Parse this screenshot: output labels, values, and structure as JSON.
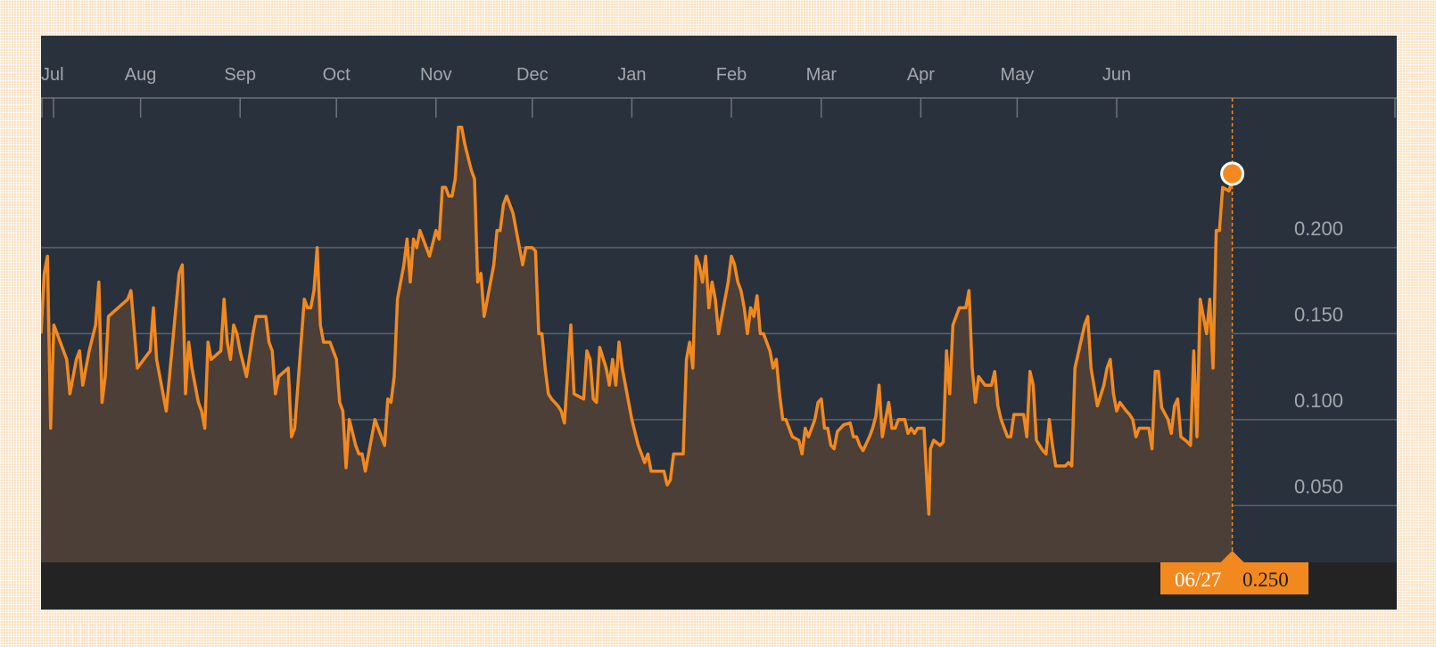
{
  "colors": {
    "page_background": "#fbe3c4",
    "plot_background": "#29313d",
    "line": "#f2891f",
    "area": "#4b3f38",
    "bottom_bar": "#232323",
    "text": "#a3a7ad"
  },
  "chart_data": {
    "type": "area",
    "title": "",
    "xlabel": "",
    "ylabel": "",
    "x_axis_months": [
      "Jul",
      "Aug",
      "Sep",
      "Oct",
      "Nov",
      "Dec",
      "Jan",
      "Feb",
      "Mar",
      "Apr",
      "May",
      "Jun"
    ],
    "y_ticks": [
      "0.050",
      "0.100",
      "0.150",
      "0.200"
    ],
    "ylim": [
      0.017,
      0.287
    ],
    "xlim_days": [
      0,
      365
    ],
    "grid": "horizontal",
    "x_unit": "day index from start of Jul",
    "series": [
      {
        "points": [
          [
            0,
            0.15
          ],
          [
            1,
            0.185
          ],
          [
            2,
            0.195
          ],
          [
            3,
            0.095
          ],
          [
            4,
            0.155
          ],
          [
            6,
            0.145
          ],
          [
            8,
            0.135
          ],
          [
            9,
            0.115
          ],
          [
            11,
            0.135
          ],
          [
            12,
            0.14
          ],
          [
            13,
            0.12
          ],
          [
            15,
            0.14
          ],
          [
            17,
            0.155
          ],
          [
            18,
            0.18
          ],
          [
            19,
            0.11
          ],
          [
            20,
            0.125
          ],
          [
            21,
            0.16
          ],
          [
            24,
            0.165
          ],
          [
            27,
            0.17
          ],
          [
            28,
            0.175
          ],
          [
            30,
            0.13
          ],
          [
            32,
            0.135
          ],
          [
            34,
            0.14
          ],
          [
            35,
            0.165
          ],
          [
            36,
            0.135
          ],
          [
            37,
            0.125
          ],
          [
            39,
            0.105
          ],
          [
            41,
            0.145
          ],
          [
            42,
            0.165
          ],
          [
            43,
            0.185
          ],
          [
            44,
            0.19
          ],
          [
            45,
            0.115
          ],
          [
            46,
            0.145
          ],
          [
            47,
            0.13
          ],
          [
            49,
            0.11
          ],
          [
            50,
            0.105
          ],
          [
            51,
            0.095
          ],
          [
            52,
            0.145
          ],
          [
            53,
            0.135
          ],
          [
            56,
            0.14
          ],
          [
            57,
            0.17
          ],
          [
            58,
            0.145
          ],
          [
            59,
            0.135
          ],
          [
            60,
            0.155
          ],
          [
            61,
            0.15
          ],
          [
            62,
            0.14
          ],
          [
            64,
            0.125
          ],
          [
            66,
            0.15
          ],
          [
            67,
            0.16
          ],
          [
            70,
            0.16
          ],
          [
            71,
            0.145
          ],
          [
            72,
            0.14
          ],
          [
            73,
            0.115
          ],
          [
            74,
            0.125
          ],
          [
            77,
            0.13
          ],
          [
            78,
            0.09
          ],
          [
            79,
            0.095
          ],
          [
            81,
            0.145
          ],
          [
            82,
            0.17
          ],
          [
            83,
            0.165
          ],
          [
            84,
            0.165
          ],
          [
            85,
            0.175
          ],
          [
            86,
            0.2
          ],
          [
            87,
            0.155
          ],
          [
            88,
            0.145
          ],
          [
            90,
            0.145
          ],
          [
            92,
            0.135
          ],
          [
            93,
            0.11
          ],
          [
            94,
            0.105
          ],
          [
            95,
            0.072
          ],
          [
            96,
            0.1
          ],
          [
            98,
            0.085
          ],
          [
            99,
            0.08
          ],
          [
            100,
            0.08
          ],
          [
            101,
            0.07
          ],
          [
            102,
            0.08
          ],
          [
            104,
            0.1
          ],
          [
            106,
            0.09
          ],
          [
            107,
            0.085
          ],
          [
            108,
            0.112
          ],
          [
            109,
            0.11
          ],
          [
            110,
            0.125
          ],
          [
            111,
            0.17
          ],
          [
            113,
            0.19
          ],
          [
            114,
            0.205
          ],
          [
            115,
            0.18
          ],
          [
            116,
            0.205
          ],
          [
            117,
            0.2
          ],
          [
            118,
            0.21
          ],
          [
            120,
            0.2
          ],
          [
            121,
            0.195
          ],
          [
            123,
            0.21
          ],
          [
            124,
            0.205
          ],
          [
            125,
            0.235
          ],
          [
            126,
            0.235
          ],
          [
            127,
            0.23
          ],
          [
            128,
            0.23
          ],
          [
            129,
            0.24
          ],
          [
            130,
            0.27
          ],
          [
            131,
            0.27
          ],
          [
            132,
            0.26
          ],
          [
            134,
            0.245
          ],
          [
            135,
            0.24
          ],
          [
            136,
            0.18
          ],
          [
            137,
            0.185
          ],
          [
            138,
            0.16
          ],
          [
            139,
            0.17
          ],
          [
            140,
            0.18
          ],
          [
            141,
            0.19
          ],
          [
            142,
            0.21
          ],
          [
            143,
            0.21
          ],
          [
            144,
            0.225
          ],
          [
            145,
            0.23
          ],
          [
            146,
            0.225
          ],
          [
            147,
            0.22
          ],
          [
            148,
            0.21
          ],
          [
            149,
            0.2
          ],
          [
            150,
            0.19
          ],
          [
            151,
            0.2
          ],
          [
            152,
            0.2
          ],
          [
            153,
            0.2
          ],
          [
            154,
            0.198
          ],
          [
            155,
            0.15
          ],
          [
            156,
            0.15
          ],
          [
            157,
            0.13
          ],
          [
            158,
            0.115
          ],
          [
            159,
            0.112
          ],
          [
            161,
            0.108
          ],
          [
            162,
            0.105
          ],
          [
            163,
            0.098
          ],
          [
            165,
            0.155
          ],
          [
            166,
            0.115
          ],
          [
            168,
            0.113
          ],
          [
            169,
            0.112
          ],
          [
            170,
            0.14
          ],
          [
            171,
            0.135
          ],
          [
            172,
            0.112
          ],
          [
            173,
            0.11
          ],
          [
            174,
            0.142
          ],
          [
            176,
            0.13
          ],
          [
            177,
            0.12
          ],
          [
            178,
            0.135
          ],
          [
            179,
            0.12
          ],
          [
            180,
            0.145
          ],
          [
            181,
            0.13
          ],
          [
            183,
            0.11
          ],
          [
            184,
            0.1
          ],
          [
            186,
            0.085
          ],
          [
            187,
            0.08
          ],
          [
            188,
            0.075
          ],
          [
            189,
            0.08
          ],
          [
            190,
            0.07
          ],
          [
            191,
            0.07
          ],
          [
            192,
            0.07
          ],
          [
            193,
            0.07
          ],
          [
            194,
            0.07
          ],
          [
            195,
            0.062
          ],
          [
            196,
            0.065
          ],
          [
            197,
            0.08
          ],
          [
            199,
            0.08
          ],
          [
            200,
            0.08
          ],
          [
            201,
            0.135
          ],
          [
            202,
            0.145
          ],
          [
            203,
            0.13
          ],
          [
            204,
            0.195
          ],
          [
            205,
            0.19
          ],
          [
            206,
            0.18
          ],
          [
            207,
            0.195
          ],
          [
            208,
            0.165
          ],
          [
            209,
            0.18
          ],
          [
            210,
            0.17
          ],
          [
            211,
            0.15
          ],
          [
            212,
            0.16
          ],
          [
            213,
            0.17
          ],
          [
            214,
            0.18
          ],
          [
            215,
            0.195
          ],
          [
            216,
            0.19
          ],
          [
            217,
            0.18
          ],
          [
            218,
            0.175
          ],
          [
            219,
            0.165
          ],
          [
            220,
            0.15
          ],
          [
            221,
            0.165
          ],
          [
            222,
            0.16
          ],
          [
            223,
            0.172
          ],
          [
            224,
            0.15
          ],
          [
            225,
            0.15
          ],
          [
            226,
            0.145
          ],
          [
            227,
            0.14
          ],
          [
            228,
            0.13
          ],
          [
            229,
            0.135
          ],
          [
            230,
            0.115
          ],
          [
            231,
            0.1
          ],
          [
            232,
            0.1
          ],
          [
            233,
            0.095
          ],
          [
            234,
            0.09
          ],
          [
            236,
            0.088
          ],
          [
            237,
            0.08
          ],
          [
            238,
            0.095
          ],
          [
            239,
            0.09
          ],
          [
            240,
            0.095
          ],
          [
            241,
            0.1
          ],
          [
            242,
            0.11
          ],
          [
            243,
            0.112
          ],
          [
            244,
            0.095
          ],
          [
            245,
            0.095
          ],
          [
            246,
            0.085
          ],
          [
            247,
            0.083
          ],
          [
            248,
            0.093
          ],
          [
            250,
            0.097
          ],
          [
            252,
            0.098
          ],
          [
            253,
            0.09
          ],
          [
            254,
            0.09
          ],
          [
            255,
            0.085
          ],
          [
            256,
            0.082
          ],
          [
            258,
            0.09
          ],
          [
            259,
            0.095
          ],
          [
            260,
            0.102
          ],
          [
            261,
            0.12
          ],
          [
            262,
            0.09
          ],
          [
            264,
            0.11
          ],
          [
            265,
            0.095
          ],
          [
            266,
            0.095
          ],
          [
            267,
            0.1
          ],
          [
            268,
            0.1
          ],
          [
            269,
            0.1
          ],
          [
            270,
            0.092
          ],
          [
            271,
            0.095
          ],
          [
            272,
            0.092
          ],
          [
            273,
            0.095
          ],
          [
            275,
            0.095
          ],
          [
            276,
            0.06
          ],
          [
            276.5,
            0.045
          ],
          [
            277,
            0.083
          ],
          [
            278,
            0.088
          ],
          [
            280,
            0.085
          ],
          [
            281,
            0.087
          ],
          [
            282,
            0.14
          ],
          [
            283,
            0.115
          ],
          [
            284,
            0.155
          ],
          [
            286,
            0.165
          ],
          [
            288,
            0.165
          ],
          [
            289,
            0.175
          ],
          [
            290,
            0.13
          ],
          [
            291,
            0.11
          ],
          [
            292,
            0.125
          ],
          [
            294,
            0.12
          ],
          [
            296,
            0.12
          ],
          [
            297,
            0.128
          ],
          [
            298,
            0.108
          ],
          [
            299,
            0.1
          ],
          [
            300,
            0.095
          ],
          [
            301,
            0.09
          ],
          [
            302,
            0.09
          ],
          [
            303,
            0.103
          ],
          [
            306,
            0.103
          ],
          [
            307,
            0.09
          ],
          [
            308,
            0.128
          ],
          [
            309,
            0.12
          ],
          [
            310,
            0.088
          ],
          [
            311,
            0.085
          ],
          [
            312,
            0.082
          ],
          [
            313,
            0.08
          ],
          [
            314,
            0.1
          ],
          [
            315,
            0.085
          ],
          [
            316,
            0.073
          ],
          [
            317,
            0.073
          ],
          [
            319,
            0.073
          ],
          [
            320,
            0.075
          ],
          [
            321,
            0.073
          ],
          [
            322,
            0.13
          ],
          [
            325,
            0.155
          ],
          [
            326,
            0.16
          ],
          [
            327,
            0.13
          ],
          [
            329,
            0.108
          ],
          [
            331,
            0.12
          ],
          [
            332,
            0.13
          ],
          [
            333,
            0.135
          ],
          [
            334,
            0.115
          ],
          [
            335,
            0.105
          ],
          [
            336,
            0.11
          ],
          [
            338,
            0.105
          ],
          [
            339,
            0.103
          ],
          [
            340,
            0.1
          ],
          [
            341,
            0.09
          ],
          [
            342,
            0.095
          ],
          [
            343,
            0.095
          ],
          [
            345,
            0.095
          ],
          [
            346,
            0.083
          ],
          [
            347,
            0.128
          ],
          [
            348,
            0.128
          ],
          [
            349,
            0.107
          ],
          [
            351,
            0.1
          ],
          [
            352,
            0.092
          ],
          [
            353,
            0.108
          ],
          [
            354,
            0.112
          ],
          [
            355,
            0.09
          ],
          [
            357,
            0.087
          ],
          [
            358,
            0.085
          ],
          [
            359,
            0.14
          ],
          [
            360,
            0.09
          ],
          [
            361,
            0.17
          ],
          [
            362,
            0.16
          ],
          [
            363,
            0.15
          ],
          [
            364,
            0.17
          ],
          [
            365,
            0.13
          ],
          [
            366,
            0.21
          ],
          [
            367,
            0.21
          ],
          [
            368,
            0.235
          ],
          [
            370,
            0.233
          ],
          [
            371,
            0.24
          ]
        ]
      }
    ],
    "crosshair": {
      "date": "06/27",
      "value": "0.250",
      "day_index": 371,
      "marker_value": 0.243
    }
  }
}
